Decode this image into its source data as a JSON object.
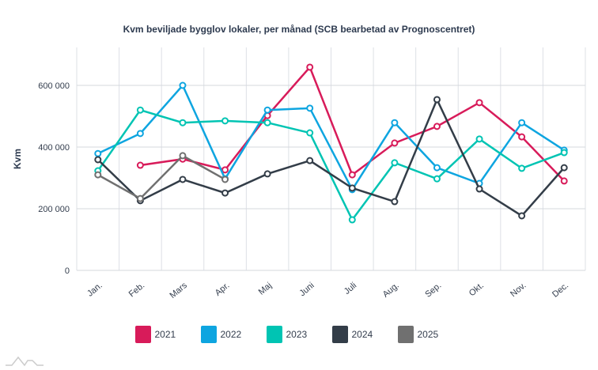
{
  "chart_data": {
    "type": "line",
    "title": "Kvm beviljade bygglov lokaler, per månad (SCB bearbetad av Prognoscentret)",
    "xlabel": "",
    "ylabel": "Kvm",
    "ylim": [
      0,
      720000
    ],
    "yticks": [
      0,
      200000,
      400000,
      600000
    ],
    "ytick_labels": [
      "0",
      "200 000",
      "400 000",
      "600 000"
    ],
    "categories": [
      "Jan.",
      "Feb.",
      "Mars",
      "Apr.",
      "Maj",
      "Juni",
      "Juli",
      "Aug.",
      "Sep.",
      "Okt.",
      "Nov.",
      "Dec."
    ],
    "legend_position": "bottom",
    "series": [
      {
        "name": "2021",
        "color": "#d81b5a",
        "values": [
          null,
          341000,
          361000,
          326000,
          502000,
          659000,
          310000,
          413000,
          467000,
          544000,
          433000,
          290000
        ]
      },
      {
        "name": "2022",
        "color": "#0ea5e0",
        "values": [
          379000,
          444000,
          600000,
          297000,
          520000,
          526000,
          262000,
          479000,
          333000,
          282000,
          479000,
          390000
        ]
      },
      {
        "name": "2023",
        "color": "#00c4b3",
        "values": [
          323000,
          520000,
          479000,
          485000,
          479000,
          446000,
          164000,
          349000,
          297000,
          426000,
          331000,
          382000
        ]
      },
      {
        "name": "2024",
        "color": "#333d48",
        "values": [
          359000,
          226000,
          295000,
          251000,
          313000,
          356000,
          267000,
          223000,
          554000,
          264000,
          177000,
          333000
        ]
      },
      {
        "name": "2025",
        "color": "#707070",
        "values": [
          310000,
          233000,
          372000,
          295000,
          null,
          null,
          null,
          null,
          null,
          null,
          null,
          null
        ]
      }
    ]
  }
}
